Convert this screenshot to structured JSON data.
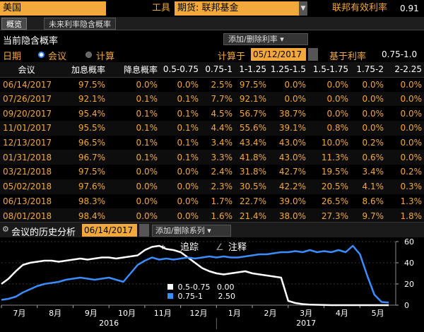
{
  "header": {
    "country": "美国",
    "tool_label": "工具",
    "futures": "期货: 联邦基金",
    "eff_rate_label": "联邦有效利率",
    "eff_rate_value": "0.91"
  },
  "tabs": [
    {
      "label": "概览",
      "active": true
    },
    {
      "label": "未来利率隐含概率",
      "active": false
    }
  ],
  "section": {
    "title": "当前隐含概率",
    "add_remove_label": "添加/删除利率"
  },
  "options": {
    "date_label": "日期",
    "meeting_label": "会议",
    "calc_label": "计算",
    "calc_at_label": "计算于",
    "calc_date": "05/12/2017",
    "based_on_label": "基于利率",
    "based_on_value": "0.75-1.0"
  },
  "table": {
    "headers": [
      "会议",
      "加息概率",
      "降息概率",
      "0.5-0.75",
      "0.75-1",
      "1-1.25",
      "1.25-1.5",
      "1.5-1.75",
      "1.75-2",
      "2-2.25"
    ],
    "rows": [
      [
        "06/14/2017",
        "97.5%",
        "0.0%",
        "0.0%",
        "2.5%",
        "97.5%",
        "0.0%",
        "0.0%",
        "0.0%",
        "0.0%"
      ],
      [
        "07/26/2017",
        "92.1%",
        "0.1%",
        "0.1%",
        "7.7%",
        "92.1%",
        "0.0%",
        "0.0%",
        "0.0%",
        "0.0%"
      ],
      [
        "09/20/2017",
        "95.4%",
        "0.1%",
        "0.1%",
        "4.5%",
        "56.7%",
        "38.7%",
        "0.0%",
        "0.0%",
        "0.0%"
      ],
      [
        "11/01/2017",
        "95.5%",
        "0.1%",
        "0.1%",
        "4.4%",
        "55.6%",
        "39.1%",
        "0.8%",
        "0.0%",
        "0.0%"
      ],
      [
        "12/13/2017",
        "96.5%",
        "0.1%",
        "0.1%",
        "3.4%",
        "43.4%",
        "43.0%",
        "10.0%",
        "0.2%",
        "0.0%"
      ],
      [
        "01/31/2018",
        "96.7%",
        "0.1%",
        "0.1%",
        "3.3%",
        "41.8%",
        "43.0%",
        "11.3%",
        "0.6%",
        "0.0%"
      ],
      [
        "03/21/2018",
        "97.5%",
        "0.0%",
        "0.0%",
        "2.4%",
        "31.8%",
        "42.7%",
        "19.5%",
        "3.4%",
        "0.2%"
      ],
      [
        "05/02/2018",
        "97.6%",
        "0.0%",
        "0.0%",
        "2.3%",
        "30.5%",
        "42.2%",
        "20.5%",
        "4.1%",
        "0.3%"
      ],
      [
        "06/13/2018",
        "98.3%",
        "0.0%",
        "0.0%",
        "1.7%",
        "22.7%",
        "39.0%",
        "26.5%",
        "8.6%",
        "1.3%"
      ],
      [
        "08/01/2018",
        "98.4%",
        "0.0%",
        "0.0%",
        "1.6%",
        "21.4%",
        "38.0%",
        "27.3%",
        "9.7%",
        "1.8%"
      ]
    ]
  },
  "history": {
    "title": "会议的历史分析",
    "date": "06/14/2017",
    "add_remove_label": "添加/删除系列"
  },
  "chart_tools": {
    "track_label": "追踪",
    "annotate_label": "注释"
  },
  "chart_data": {
    "type": "line",
    "x_labels": [
      "7月",
      "8月",
      "9月",
      "10月",
      "11月",
      "12月",
      "1月",
      "2月",
      "3月",
      "4月",
      "5月"
    ],
    "year_labels": [
      "2016",
      "2017"
    ],
    "y_ticks": [
      0,
      20,
      40,
      60
    ],
    "ylim": [
      0,
      60
    ],
    "series": [
      {
        "name": "0.5-0.75",
        "color": "#ffffff",
        "last_value": "0.00",
        "values": [
          20,
          25,
          32,
          38,
          40,
          41,
          42,
          42,
          41,
          42,
          43,
          44,
          43,
          44,
          45,
          45,
          44,
          45,
          46,
          47,
          52,
          55,
          56,
          53,
          52,
          50,
          45,
          40,
          35,
          32,
          30,
          29,
          30,
          31,
          32,
          30,
          29,
          28,
          27,
          26,
          4,
          2,
          1,
          0.5,
          0.3,
          0.2,
          0,
          0,
          0,
          0,
          0,
          0,
          0,
          0,
          0
        ]
      },
      {
        "name": "0.75-1",
        "color": "#3b8cff",
        "last_value": "2.50",
        "values": [
          5,
          6,
          8,
          12,
          15,
          18,
          20,
          21,
          22,
          24,
          25,
          26,
          25,
          24,
          25,
          26,
          24,
          22,
          30,
          38,
          42,
          45,
          43,
          44,
          43,
          44,
          45,
          44,
          45,
          46,
          45,
          46,
          45,
          45,
          46,
          47,
          48,
          48,
          49,
          50,
          50,
          51,
          50,
          52,
          50,
          51,
          50,
          52,
          50,
          56,
          48,
          28,
          10,
          3,
          2.5
        ]
      }
    ]
  }
}
